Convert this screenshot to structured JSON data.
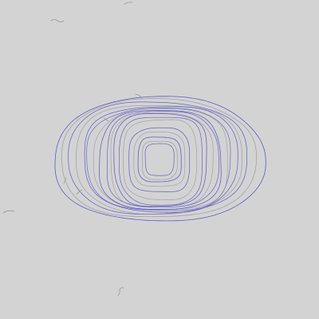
{
  "colors": {
    "background": "#d3d3d3",
    "spiral_blue": "#5050c8",
    "spiral_gray": "#8f8f9a",
    "scribble_gray": "#9a9a9a"
  },
  "drawing": {
    "subject": "concentric-spiral-loops",
    "loop_count": 18,
    "stray_marks": 8
  }
}
